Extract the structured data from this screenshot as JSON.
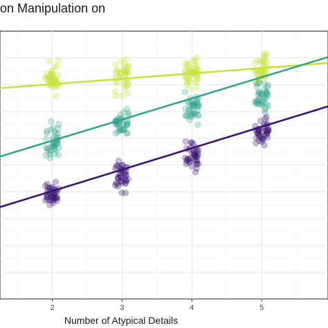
{
  "chart_data": {
    "type": "scatter",
    "title": "on Manipulation on",
    "xlabel": "Number of Atypical Details",
    "ylabel": "",
    "xlim": [
      1.25,
      5.95
    ],
    "ylim": [
      0,
      10
    ],
    "x_ticks": [
      2,
      3,
      4,
      5
    ],
    "x_tick_labels": [
      "2",
      "3",
      "4",
      "5"
    ],
    "grid": true,
    "series": [
      {
        "color": "#c6e33a",
        "points": [
          {
            "x": 2,
            "y": 8.2
          },
          {
            "x": 3,
            "y": 8.3
          },
          {
            "x": 4,
            "y": 8.4
          },
          {
            "x": 5,
            "y": 8.6
          }
        ],
        "fit": {
          "intercept": 7.62,
          "slope": 0.2
        }
      },
      {
        "color": "#37a48e",
        "points": [
          {
            "x": 2,
            "y": 5.9
          },
          {
            "x": 3,
            "y": 6.5
          },
          {
            "x": 4,
            "y": 7.1
          },
          {
            "x": 5,
            "y": 7.6
          }
        ],
        "fit": {
          "intercept": 4.33,
          "slope": 0.79
        }
      },
      {
        "color": "#3a1372",
        "points": [
          {
            "x": 2,
            "y": 3.8
          },
          {
            "x": 3,
            "y": 4.6
          },
          {
            "x": 4,
            "y": 5.4
          },
          {
            "x": 5,
            "y": 6.2
          }
        ],
        "fit": {
          "intercept": 2.43,
          "slope": 0.8
        }
      }
    ],
    "point_color": "#6a3fc8"
  }
}
